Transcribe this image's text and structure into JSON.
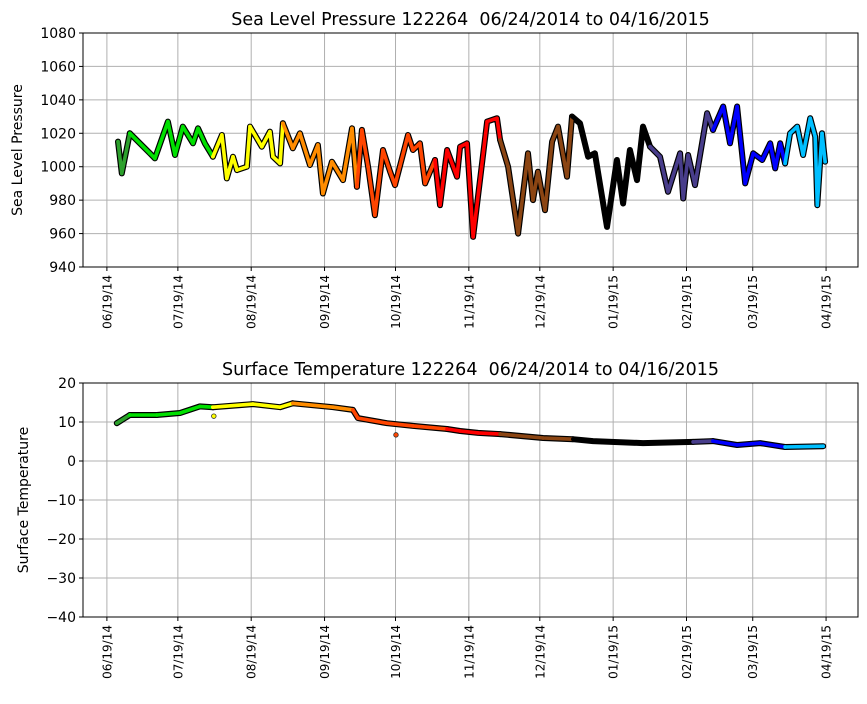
{
  "chart_data": [
    {
      "type": "scatter",
      "title": "Sea Level Pressure 122264  06/24/2014 to 04/16/2015",
      "xlabel": "",
      "ylabel": "Sea Level Pressure",
      "x_units": "days since 06/19/14",
      "xlim": [
        -10.1,
        317.5
      ],
      "ylim": [
        940,
        1080
      ],
      "yticks": [
        940,
        960,
        980,
        1000,
        1020,
        1040,
        1060,
        1080
      ],
      "xticks": [
        {
          "label": "06/19/14",
          "day": 0
        },
        {
          "label": "07/19/14",
          "day": 30
        },
        {
          "label": "08/19/14",
          "day": 61
        },
        {
          "label": "09/19/14",
          "day": 92
        },
        {
          "label": "10/19/14",
          "day": 122
        },
        {
          "label": "11/19/14",
          "day": 153
        },
        {
          "label": "12/19/14",
          "day": 183
        },
        {
          "label": "01/19/15",
          "day": 214
        },
        {
          "label": "02/19/15",
          "day": 245
        },
        {
          "label": "03/19/15",
          "day": 273
        },
        {
          "label": "04/19/15",
          "day": 304
        }
      ],
      "grid": true,
      "points": [
        [
          4.7,
          1015
        ],
        [
          6.3,
          996
        ],
        [
          9.7,
          1020
        ],
        [
          18.2,
          1008
        ],
        [
          20.3,
          1005
        ],
        [
          25.8,
          1027
        ],
        [
          28.8,
          1007
        ],
        [
          32.1,
          1024
        ],
        [
          36.4,
          1014
        ],
        [
          38.5,
          1023
        ],
        [
          41.4,
          1014
        ],
        [
          44.8,
          1006
        ],
        [
          48.6,
          1019
        ],
        [
          50.7,
          993
        ],
        [
          53.3,
          1006
        ],
        [
          55,
          998
        ],
        [
          59.2,
          1000
        ],
        [
          60.5,
          1024
        ],
        [
          65.5,
          1012
        ],
        [
          68.9,
          1021
        ],
        [
          70.2,
          1006
        ],
        [
          73.2,
          1002
        ],
        [
          74.4,
          1026
        ],
        [
          78.6,
          1011
        ],
        [
          81.6,
          1020
        ],
        [
          85.8,
          1001
        ],
        [
          89.2,
          1013
        ],
        [
          91.3,
          984
        ],
        [
          95.1,
          1003
        ],
        [
          99.8,
          992
        ],
        [
          103.6,
          1023
        ],
        [
          105.7,
          988
        ],
        [
          107.8,
          1022
        ],
        [
          110.4,
          1000
        ],
        [
          113.3,
          971
        ],
        [
          116.7,
          1010
        ],
        [
          119.7,
          997
        ],
        [
          121.8,
          989
        ],
        [
          127.3,
          1019
        ],
        [
          129.4,
          1010
        ],
        [
          132.3,
          1014
        ],
        [
          134.5,
          990
        ],
        [
          138.7,
          1004
        ],
        [
          140.8,
          977
        ],
        [
          143.8,
          1010
        ],
        [
          148,
          994
        ],
        [
          149.3,
          1012
        ],
        [
          152.2,
          1014
        ],
        [
          154.8,
          958
        ],
        [
          160.7,
          1027
        ],
        [
          164.9,
          1029
        ],
        [
          166.2,
          1016
        ],
        [
          169.6,
          1000
        ],
        [
          173.8,
          960
        ],
        [
          178,
          1008
        ],
        [
          180.1,
          980
        ],
        [
          182.2,
          997
        ],
        [
          185.2,
          974
        ],
        [
          188.2,
          1015
        ],
        [
          190.7,
          1024
        ],
        [
          194.5,
          994
        ],
        [
          196.6,
          1030
        ],
        [
          200,
          1026
        ],
        [
          203.4,
          1006
        ],
        [
          206.3,
          1008
        ],
        [
          211.4,
          964
        ],
        [
          215.6,
          1004
        ],
        [
          218.2,
          978
        ],
        [
          221.1,
          1010
        ],
        [
          224.1,
          992
        ],
        [
          226.6,
          1024
        ],
        [
          229.6,
          1012
        ],
        [
          233.8,
          1006
        ],
        [
          237.2,
          985
        ],
        [
          242.3,
          1008
        ],
        [
          243.6,
          981
        ],
        [
          245.7,
          1007
        ],
        [
          248.6,
          989
        ],
        [
          253.7,
          1032
        ],
        [
          256.2,
          1022
        ],
        [
          260.5,
          1036
        ],
        [
          263.4,
          1014
        ],
        [
          266.4,
          1036
        ],
        [
          269.8,
          990
        ],
        [
          273.2,
          1008
        ],
        [
          277,
          1004
        ],
        [
          280.4,
          1014
        ],
        [
          282.5,
          999
        ],
        [
          284.6,
          1014
        ],
        [
          286.7,
          1002
        ],
        [
          288.8,
          1020
        ],
        [
          291.8,
          1024
        ],
        [
          294.3,
          1007
        ],
        [
          297.3,
          1029
        ],
        [
          299.4,
          1018
        ],
        [
          300.3,
          977
        ],
        [
          302.3,
          1020
        ],
        [
          303.6,
          1003
        ]
      ],
      "outliers": [],
      "color_bands": [
        {
          "start_day": -999,
          "color": "#2ca02c"
        },
        {
          "start_day": 8,
          "color": "#00e000"
        },
        {
          "start_day": 43,
          "color": "#ffff00"
        },
        {
          "start_day": 74,
          "color": "#ff8c00"
        },
        {
          "start_day": 104,
          "color": "#ff4500"
        },
        {
          "start_day": 135,
          "color": "#ff0000"
        },
        {
          "start_day": 165,
          "color": "#8b4513"
        },
        {
          "start_day": 196,
          "color": "#000000"
        },
        {
          "start_day": 227,
          "color": "#483d8b"
        },
        {
          "start_day": 255,
          "color": "#0000ff"
        },
        {
          "start_day": 286,
          "color": "#00bfff"
        }
      ]
    },
    {
      "type": "scatter",
      "title": "Surface Temperature 122264  06/24/2014 to 04/16/2015",
      "xlabel": "",
      "ylabel": "Surface Temperature",
      "x_units": "days since 06/19/14",
      "xlim": [
        -10.1,
        317.5
      ],
      "ylim": [
        -40,
        20
      ],
      "yticks": [
        -40,
        -30,
        -20,
        -10,
        0,
        10,
        20
      ],
      "xticks": [
        {
          "label": "06/19/14",
          "day": 0
        },
        {
          "label": "07/19/14",
          "day": 30
        },
        {
          "label": "08/19/14",
          "day": 61
        },
        {
          "label": "09/19/14",
          "day": 92
        },
        {
          "label": "10/19/14",
          "day": 122
        },
        {
          "label": "11/19/14",
          "day": 153
        },
        {
          "label": "12/19/14",
          "day": 183
        },
        {
          "label": "01/19/15",
          "day": 214
        },
        {
          "label": "02/19/15",
          "day": 245
        },
        {
          "label": "03/19/15",
          "day": 273
        },
        {
          "label": "04/19/15",
          "day": 304
        }
      ],
      "grid": true,
      "points": [
        [
          4.2,
          9.7
        ],
        [
          9.7,
          11.8
        ],
        [
          21.1,
          11.8
        ],
        [
          30.9,
          12.3
        ],
        [
          39.3,
          14
        ],
        [
          44.8,
          13.8
        ],
        [
          61.7,
          14.6
        ],
        [
          73.2,
          13.8
        ],
        [
          78.6,
          14.8
        ],
        [
          95.6,
          13.8
        ],
        [
          104,
          13.1
        ],
        [
          106.1,
          11
        ],
        [
          118.4,
          9.7
        ],
        [
          129.4,
          9
        ],
        [
          143.8,
          8.2
        ],
        [
          149.3,
          7.7
        ],
        [
          156.9,
          7.2
        ],
        [
          166.2,
          6.9
        ],
        [
          184.4,
          5.9
        ],
        [
          197,
          5.6
        ],
        [
          205.5,
          5.1
        ],
        [
          226.6,
          4.6
        ],
        [
          247.8,
          4.9
        ],
        [
          256.2,
          5.1
        ],
        [
          266.4,
          4.1
        ],
        [
          276.1,
          4.6
        ],
        [
          286.7,
          3.6
        ],
        [
          302.8,
          3.8
        ]
      ],
      "outliers": [
        [
          45.2,
          11.5
        ],
        [
          122.2,
          6.7
        ]
      ],
      "color_bands": [
        {
          "start_day": -999,
          "color": "#2ca02c"
        },
        {
          "start_day": 8,
          "color": "#00e000"
        },
        {
          "start_day": 41,
          "color": "#ffff00"
        },
        {
          "start_day": 74,
          "color": "#ff8c00"
        },
        {
          "start_day": 104,
          "color": "#ff4500"
        },
        {
          "start_day": 133,
          "color": "#ff0000"
        },
        {
          "start_day": 165,
          "color": "#8b4513"
        },
        {
          "start_day": 196,
          "color": "#000000"
        },
        {
          "start_day": 227,
          "color": "#483d8b"
        },
        {
          "start_day": 255,
          "color": "#0000ff"
        },
        {
          "start_day": 286,
          "color": "#00bfff"
        }
      ]
    }
  ]
}
